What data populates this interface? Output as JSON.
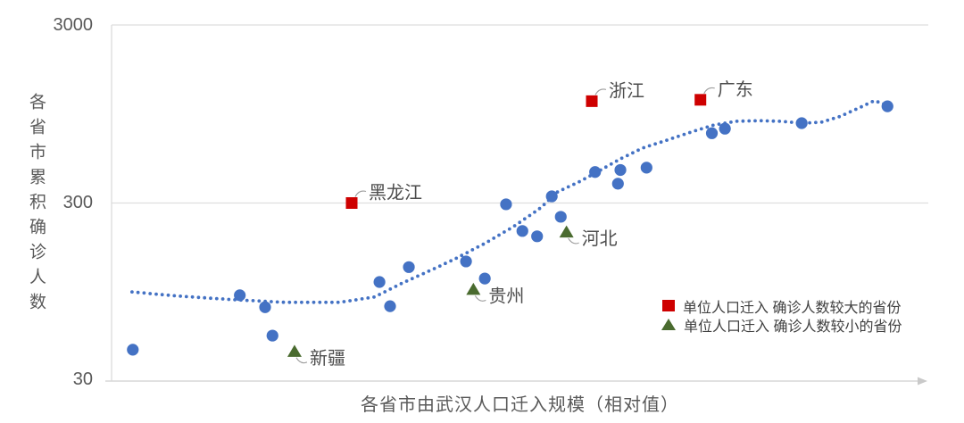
{
  "chart_data": {
    "type": "scatter",
    "title": "",
    "x_axis": {
      "title": "各省市由武汉人口迁入规模（相对值）",
      "scale": "linear-relative",
      "range": [
        0,
        1
      ],
      "ticks": [],
      "arrow_at_end": true
    },
    "y_axis": {
      "title": "各省市累积确诊人数",
      "scale": "log",
      "range": [
        30,
        3000
      ],
      "ticks": [
        3000,
        300,
        30
      ],
      "tick_labels": [
        "3000",
        "300",
        "30"
      ]
    },
    "grid": "horizontal-only",
    "colors": {
      "point_blue": "#4472C4",
      "highlight_red": "#CE0000",
      "highlight_green": "#4A6B2F",
      "gridline": "#dedede",
      "axis_text": "#595959",
      "label_text": "#4d4d4d"
    },
    "series": [
      {
        "name": "各省市",
        "marker": "circle",
        "color": "#4472C4",
        "points": [
          {
            "x": 0.026,
            "y": 45
          },
          {
            "x": 0.157,
            "y": 91
          },
          {
            "x": 0.188,
            "y": 78
          },
          {
            "x": 0.197,
            "y": 54
          },
          {
            "x": 0.328,
            "y": 108
          },
          {
            "x": 0.341,
            "y": 79
          },
          {
            "x": 0.364,
            "y": 131
          },
          {
            "x": 0.434,
            "y": 141
          },
          {
            "x": 0.457,
            "y": 113
          },
          {
            "x": 0.483,
            "y": 295
          },
          {
            "x": 0.503,
            "y": 209
          },
          {
            "x": 0.521,
            "y": 195
          },
          {
            "x": 0.539,
            "y": 327
          },
          {
            "x": 0.55,
            "y": 251
          },
          {
            "x": 0.592,
            "y": 448
          },
          {
            "x": 0.62,
            "y": 385
          },
          {
            "x": 0.623,
            "y": 460
          },
          {
            "x": 0.655,
            "y": 474
          },
          {
            "x": 0.735,
            "y": 740
          },
          {
            "x": 0.751,
            "y": 785
          },
          {
            "x": 0.845,
            "y": 843
          },
          {
            "x": 0.95,
            "y": 1048
          }
        ]
      },
      {
        "name": "单位人口迁入 确诊人数较大的省份",
        "marker": "square",
        "color": "#CE0000",
        "points": [
          {
            "x": 0.294,
            "y": 300,
            "label": "黑龙江"
          },
          {
            "x": 0.588,
            "y": 1120,
            "label": "浙江"
          },
          {
            "x": 0.721,
            "y": 1140,
            "label": "广东"
          }
        ]
      },
      {
        "name": "单位人口迁入 确诊人数较小的省份",
        "marker": "triangle",
        "color": "#4A6B2F",
        "points": [
          {
            "x": 0.224,
            "y": 44,
            "label": "新疆"
          },
          {
            "x": 0.443,
            "y": 98,
            "label": "贵州"
          },
          {
            "x": 0.557,
            "y": 206,
            "label": "河北"
          }
        ]
      }
    ],
    "trend_line": {
      "style": "dotted",
      "color": "#4472C4",
      "points": [
        [
          0.025,
          95
        ],
        [
          0.082,
          90
        ],
        [
          0.148,
          86
        ],
        [
          0.213,
          83
        ],
        [
          0.279,
          83
        ],
        [
          0.322,
          89
        ],
        [
          0.355,
          106
        ],
        [
          0.388,
          124
        ],
        [
          0.421,
          146
        ],
        [
          0.459,
          180
        ],
        [
          0.492,
          221
        ],
        [
          0.525,
          281
        ],
        [
          0.546,
          346
        ],
        [
          0.574,
          398
        ],
        [
          0.596,
          452
        ],
        [
          0.623,
          531
        ],
        [
          0.65,
          610
        ],
        [
          0.683,
          684
        ],
        [
          0.71,
          752
        ],
        [
          0.738,
          824
        ],
        [
          0.765,
          863
        ],
        [
          0.792,
          870
        ],
        [
          0.82,
          863
        ],
        [
          0.845,
          843
        ],
        [
          0.869,
          853
        ],
        [
          0.891,
          916
        ],
        [
          0.913,
          1016
        ],
        [
          0.934,
          1127
        ],
        [
          0.95,
          1063
        ]
      ]
    },
    "legend": {
      "position": "inside-bottom-right",
      "items": [
        {
          "marker": "square",
          "color": "#CE0000",
          "label": "单位人口迁入 确诊人数较大的省份"
        },
        {
          "marker": "triangle",
          "color": "#4A6B2F",
          "label": "单位人口迁入 确诊人数较小的省份"
        }
      ]
    }
  }
}
